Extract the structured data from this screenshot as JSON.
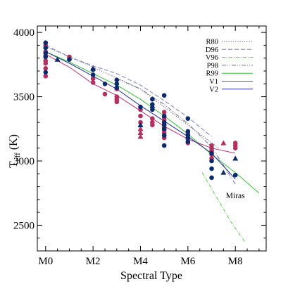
{
  "chart_data": {
    "type": "scatter",
    "title": "",
    "xlabel": "Spectral Type",
    "ylabel": "T",
    "ylabel_subscript": "eff",
    "ylabel_unit": "(K)",
    "xlim": [
      -0.35,
      9.3
    ],
    "ylim": [
      2300,
      4050
    ],
    "x_ticks": [
      {
        "value": 0,
        "label": "M0"
      },
      {
        "value": 2,
        "label": "M2"
      },
      {
        "value": 4,
        "label": "M4"
      },
      {
        "value": 6,
        "label": "M6"
      },
      {
        "value": 8,
        "label": "M8"
      }
    ],
    "y_ticks": [
      2500,
      3000,
      3500,
      4000
    ],
    "grid": false,
    "legend_position": "top-right",
    "annotations": [
      {
        "text": "Miras",
        "x": 8.0,
        "y": 2710
      }
    ],
    "series": [
      {
        "name": "R80",
        "kind": "line",
        "color": "#555566",
        "dash": "1.2,2",
        "x": [
          0,
          2,
          4,
          6,
          7.3
        ],
        "y": [
          3890,
          3730,
          3560,
          3280,
          3100
        ]
      },
      {
        "name": "D96",
        "kind": "line",
        "color": "#7a7fbf",
        "dash": "6,3",
        "x": [
          0,
          1,
          2,
          3,
          4,
          5,
          6,
          7
        ],
        "y": [
          3900,
          3810,
          3740,
          3680,
          3590,
          3470,
          3340,
          3190
        ]
      },
      {
        "name": "V96",
        "kind": "line",
        "color": "#55cc44",
        "dash": "5,2,1,2",
        "x": [
          6.6,
          7.2,
          7.8,
          8.4
        ],
        "y": [
          2910,
          2720,
          2530,
          2370
        ]
      },
      {
        "name": "P98",
        "kind": "line",
        "color": "#6a6a90",
        "dash": "6,2,1,2,1,2",
        "x": [
          3,
          4,
          5,
          6,
          7,
          8
        ],
        "y": [
          3640,
          3560,
          3440,
          3290,
          3110,
          2820
        ]
      },
      {
        "name": "R99",
        "kind": "line",
        "color": "#3dbb3d",
        "dash": "",
        "x": [
          0,
          1,
          2,
          3,
          4,
          5,
          6,
          7,
          8,
          9
        ],
        "y": [
          3850,
          3770,
          3680,
          3590,
          3480,
          3350,
          3210,
          3050,
          2910,
          2750
        ]
      },
      {
        "name": "V1",
        "kind": "line",
        "color": "#bb3377",
        "dash": "",
        "x": [
          0,
          1,
          2,
          3,
          4,
          5,
          6,
          7,
          8
        ],
        "y": [
          3830,
          3730,
          3600,
          3510,
          3390,
          3270,
          3170,
          3100,
          3060
        ]
      },
      {
        "name": "V2",
        "kind": "line",
        "color": "#223399",
        "dash": "",
        "x": [
          0,
          1,
          2,
          3,
          4,
          5,
          6,
          7,
          8
        ],
        "y": [
          3850,
          3760,
          3660,
          3560,
          3430,
          3310,
          3190,
          3060,
          2860
        ]
      },
      {
        "name": "",
        "kind": "scatter",
        "marker": "circle",
        "color": "#b03060",
        "points": [
          [
            0,
            3900
          ],
          [
            0,
            3850
          ],
          [
            0,
            3820
          ],
          [
            0,
            3780
          ],
          [
            0,
            3760
          ],
          [
            0,
            3720
          ],
          [
            0,
            3660
          ],
          [
            1,
            3810
          ],
          [
            1,
            3790
          ],
          [
            2,
            3640
          ],
          [
            2,
            3610
          ],
          [
            2.5,
            3520
          ],
          [
            3,
            3560
          ],
          [
            3,
            3500
          ],
          [
            3,
            3480
          ],
          [
            3,
            3460
          ],
          [
            4,
            3400
          ],
          [
            4,
            3350
          ],
          [
            4,
            3300
          ],
          [
            4.5,
            3330
          ],
          [
            4.5,
            3300
          ],
          [
            4.5,
            3280
          ],
          [
            5,
            3380
          ],
          [
            5,
            3340
          ],
          [
            5,
            3320
          ],
          [
            5,
            3280
          ],
          [
            5,
            3260
          ],
          [
            5,
            3240
          ],
          [
            5,
            3220
          ],
          [
            5,
            3200
          ],
          [
            5,
            3180
          ],
          [
            6,
            3210
          ],
          [
            6,
            3170
          ],
          [
            6,
            3140
          ],
          [
            7,
            3120
          ],
          [
            7,
            3100
          ],
          [
            7,
            3080
          ],
          [
            7,
            3050
          ],
          [
            7,
            3020
          ],
          [
            8,
            3140
          ],
          [
            8,
            3120
          ],
          [
            8,
            3100
          ]
        ]
      },
      {
        "name": "",
        "kind": "scatter",
        "marker": "circle",
        "color": "#0b2a6b",
        "points": [
          [
            0,
            3920
          ],
          [
            0,
            3880
          ],
          [
            0,
            3840
          ],
          [
            0,
            3810
          ],
          [
            0,
            3690
          ],
          [
            1,
            3790
          ],
          [
            2,
            3710
          ],
          [
            2,
            3670
          ],
          [
            2.5,
            3600
          ],
          [
            3,
            3630
          ],
          [
            3,
            3600
          ],
          [
            3,
            3570
          ],
          [
            4,
            3420
          ],
          [
            4.5,
            3480
          ],
          [
            4.5,
            3440
          ],
          [
            4.5,
            3400
          ],
          [
            5,
            3510
          ],
          [
            5,
            3350
          ],
          [
            5,
            3300
          ],
          [
            5,
            3280
          ],
          [
            5,
            3250
          ],
          [
            5,
            3200
          ],
          [
            5,
            3120
          ],
          [
            6,
            3330
          ],
          [
            6,
            3230
          ],
          [
            6,
            3200
          ],
          [
            6,
            3180
          ],
          [
            6,
            3150
          ],
          [
            7,
            3060
          ],
          [
            7,
            3000
          ],
          [
            7,
            2940
          ],
          [
            7,
            2870
          ],
          [
            8,
            2890
          ]
        ]
      },
      {
        "name": "",
        "kind": "scatter",
        "marker": "triangle",
        "color": "#b03060",
        "points": [
          [
            4,
            3250
          ],
          [
            4,
            3220
          ],
          [
            4,
            3190
          ],
          [
            7.5,
            3140
          ]
        ]
      },
      {
        "name": "",
        "kind": "scatter",
        "marker": "triangle",
        "color": "#0b2a6b",
        "points": [
          [
            0.5,
            3790
          ],
          [
            2,
            3720
          ],
          [
            4,
            3280
          ],
          [
            4.5,
            3430
          ],
          [
            7.5,
            2910
          ],
          [
            8,
            3020
          ]
        ]
      }
    ]
  }
}
